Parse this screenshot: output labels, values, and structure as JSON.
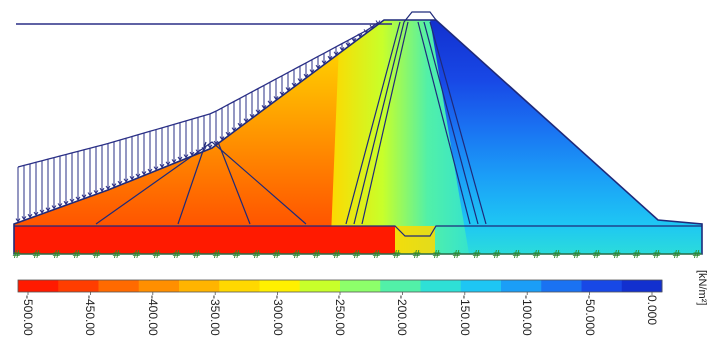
{
  "colorbar": {
    "unit": "[kN/m²]",
    "ticks": [
      "-500.00",
      "-450.00",
      "-400.00",
      "-350.00",
      "-300.00",
      "-250.00",
      "-200.00",
      "-150.00",
      "-100.00",
      "-50.000",
      "0.000"
    ],
    "colors": [
      "#ff1a00",
      "#ff3d00",
      "#ff6a00",
      "#ff8f00",
      "#ffb400",
      "#ffd800",
      "#fff000",
      "#c8ff2a",
      "#8dff6a",
      "#52f0a8",
      "#2ee0d6",
      "#1ec6f4",
      "#1b9ef7",
      "#1a72f2",
      "#1848e6",
      "#1230cf"
    ]
  },
  "diagram": {
    "subject": "embankment dam cross-section with stress contour fill and upstream water load arrows",
    "contour_colors": {
      "upstream_deep": "#ff1a00",
      "upstream_mid": "#ff8f00",
      "crest_zone": "#fff000",
      "core": "#8dff6a",
      "downstream": "#1ec6f4",
      "downstream_top": "#1230cf"
    },
    "load_arrow_color": "#2a2f86",
    "foundation_marker_color": "#2a8a2a"
  }
}
